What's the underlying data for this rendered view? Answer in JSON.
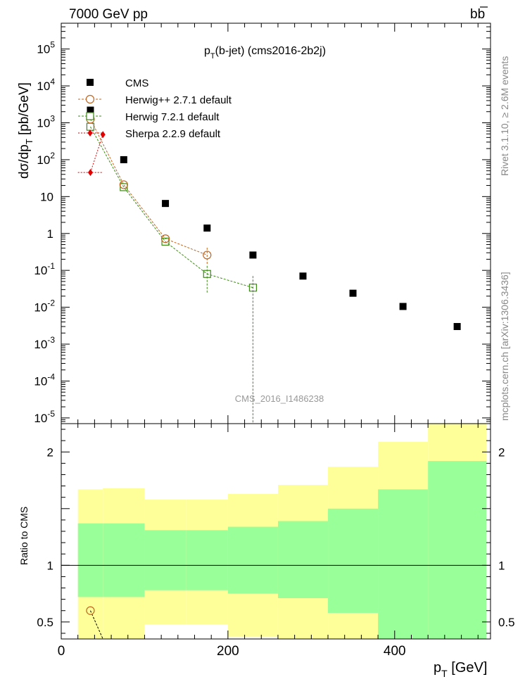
{
  "header": {
    "energy_label": "7000 GeV pp",
    "process_main": "b",
    "process_bar": "b"
  },
  "title": {
    "main": "p",
    "sub": "T",
    "rest": "(b-jet) (cms2016-2b2j)"
  },
  "side_labels": {
    "rivet": "Rivet 3.1.10, ≥ 2.6M events",
    "mcplots": "mcplots.cern.ch [arXiv:1306.3436]"
  },
  "watermark": "CMS_2016_I1486238",
  "axis_labels": {
    "y_main_a": "dσ/dp",
    "y_main_sub": "T",
    "y_main_b": " [pb/GeV]",
    "y_ratio": "Ratio to CMS",
    "x_a": "p",
    "x_sub": "T",
    "x_b": " [GeV]"
  },
  "colors": {
    "cms": "#000000",
    "herwig_pp": "#c0641e",
    "herwig7": "#3c8c14",
    "sherpa": "#e00000",
    "band_inner": "#99ff99",
    "band_outer": "#ffff99"
  },
  "legend": [
    {
      "label": "CMS",
      "style": "square"
    },
    {
      "label": "Herwig++ 2.7.1 default",
      "style": "circle"
    },
    {
      "label": "Herwig 7.2.1 default",
      "style": "open-square"
    },
    {
      "label": "Sherpa 2.2.9 default",
      "style": "diamond"
    }
  ],
  "chart_data": [
    {
      "type": "scatter",
      "title": "p_T(b-jet) (cms2016-2b2j)",
      "xlabel": "p_T [GeV]",
      "ylabel": "dσ/dp_T [pb/GeV]",
      "xlim": [
        0,
        515
      ],
      "ylim": [
        7e-06,
        500000
      ],
      "yscale": "log",
      "x_ticks": [
        "0",
        "200",
        "400"
      ],
      "y_ticks": [
        "10^-5",
        "10^-4",
        "10^-3",
        "10^-2",
        "10^-1",
        "1",
        "10",
        "10^2",
        "10^3",
        "10^4",
        "10^5"
      ],
      "bin_edges": [
        20,
        50,
        100,
        150,
        200,
        260,
        320,
        380,
        440,
        510
      ],
      "series": [
        {
          "name": "CMS",
          "x": [
            35,
            75,
            125,
            175,
            230,
            290,
            350,
            410,
            475
          ],
          "y": [
            2200,
            100,
            6.5,
            1.4,
            0.26,
            0.07,
            0.024,
            0.0105,
            0.003
          ]
        },
        {
          "name": "Herwig++ 2.7.1 default",
          "x": [
            35,
            75,
            125,
            175
          ],
          "y": [
            1250,
            21,
            0.72,
            0.26
          ]
        },
        {
          "name": "Herwig 7.2.1 default",
          "x": [
            35,
            75,
            125,
            175,
            230
          ],
          "y": [
            780,
            18,
            0.6,
            0.08,
            0.034
          ]
        },
        {
          "name": "Sherpa 2.2.9 default",
          "x": [
            35,
            50
          ],
          "y": [
            45,
            480
          ]
        }
      ]
    },
    {
      "type": "line",
      "ylabel": "Ratio to CMS",
      "xlim": [
        0,
        515
      ],
      "ylim": [
        0.35,
        2.25
      ],
      "y_ticks": [
        "0.5",
        "1",
        "2"
      ],
      "bands": {
        "bin_edges": [
          20,
          50,
          100,
          150,
          200,
          260,
          320,
          380,
          440,
          510
        ],
        "inner_lo": [
          0.72,
          0.72,
          0.78,
          0.78,
          0.75,
          0.71,
          0.58,
          0.35,
          0.35
        ],
        "inner_hi": [
          1.37,
          1.37,
          1.31,
          1.31,
          1.34,
          1.39,
          1.5,
          1.67,
          1.92
        ],
        "outer_lo": [
          0.35,
          0.35,
          0.48,
          0.48,
          0.37,
          0.35,
          0.35,
          0.35,
          0.35
        ],
        "outer_hi": [
          1.67,
          1.68,
          1.58,
          1.58,
          1.63,
          1.71,
          1.87,
          2.09,
          2.25
        ]
      },
      "series": [
        {
          "name": "Herwig++ 2.7.1 default",
          "x": [
            35,
            50
          ],
          "y": [
            0.6,
            0.35
          ]
        }
      ]
    }
  ]
}
